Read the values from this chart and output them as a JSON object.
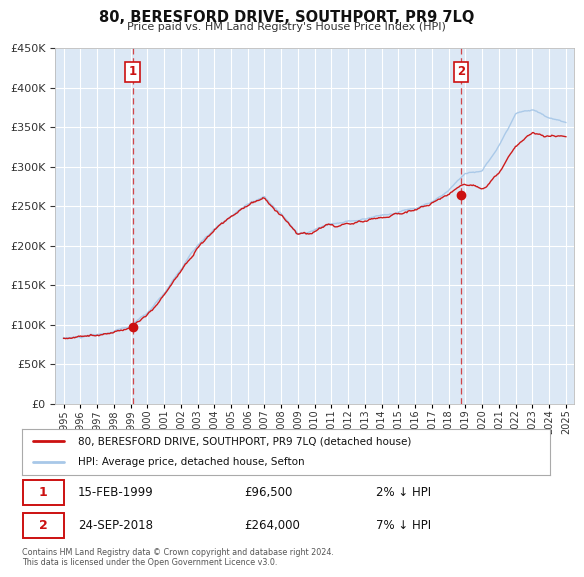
{
  "title": "80, BERESFORD DRIVE, SOUTHPORT, PR9 7LQ",
  "subtitle": "Price paid vs. HM Land Registry's House Price Index (HPI)",
  "bg_color": "#ffffff",
  "plot_bg_color": "#dce8f5",
  "grid_color": "#ffffff",
  "red_line_label": "80, BERESFORD DRIVE, SOUTHPORT, PR9 7LQ (detached house)",
  "blue_line_label": "HPI: Average price, detached house, Sefton",
  "sale1_date": "15-FEB-1999",
  "sale1_price": "£96,500",
  "sale1_hpi": "2% ↓ HPI",
  "sale1_year": 1999.12,
  "sale1_value": 96500,
  "sale2_date": "24-SEP-2018",
  "sale2_price": "£264,000",
  "sale2_hpi": "7% ↓ HPI",
  "sale2_year": 2018.73,
  "sale2_value": 264000,
  "footer": "Contains HM Land Registry data © Crown copyright and database right 2024.\nThis data is licensed under the Open Government Licence v3.0.",
  "ylim": [
    0,
    450000
  ],
  "yticks": [
    0,
    50000,
    100000,
    150000,
    200000,
    250000,
    300000,
    350000,
    400000,
    450000
  ],
  "xlim_start": 1994.5,
  "xlim_end": 2025.5,
  "vline1_x": 1999.12,
  "vline2_x": 2018.73,
  "hpi_anchors_x": [
    1995,
    1996,
    1997,
    1998,
    1999,
    2000,
    2001,
    2002,
    2003,
    2004,
    2005,
    2006,
    2007,
    2008,
    2009,
    2010,
    2011,
    2012,
    2013,
    2014,
    2015,
    2016,
    2017,
    2018,
    2019,
    2020,
    2021,
    2022,
    2023,
    2024,
    2025
  ],
  "hpi_anchors_y": [
    83000,
    84000,
    87000,
    91000,
    98000,
    115000,
    140000,
    170000,
    200000,
    220000,
    238000,
    252000,
    262000,
    240000,
    215000,
    220000,
    228000,
    230000,
    233000,
    238000,
    242000,
    247000,
    255000,
    270000,
    292000,
    295000,
    325000,
    368000,
    372000,
    362000,
    356000
  ],
  "red_anchors_x": [
    1995,
    1996,
    1997,
    1998,
    1999,
    2000,
    2001,
    2002,
    2003,
    2004,
    2005,
    2006,
    2007,
    2008,
    2009,
    2010,
    2011,
    2012,
    2013,
    2014,
    2015,
    2016,
    2017,
    2018,
    2019,
    2020,
    2021,
    2022,
    2023,
    2024,
    2025
  ],
  "red_anchors_y": [
    83000,
    84000,
    87000,
    91000,
    96500,
    112000,
    137000,
    167000,
    197000,
    218000,
    236000,
    250000,
    260000,
    238000,
    213000,
    218000,
    226000,
    228000,
    231000,
    236000,
    240000,
    245000,
    253000,
    264000,
    278000,
    272000,
    290000,
    328000,
    342000,
    338000,
    338000
  ]
}
